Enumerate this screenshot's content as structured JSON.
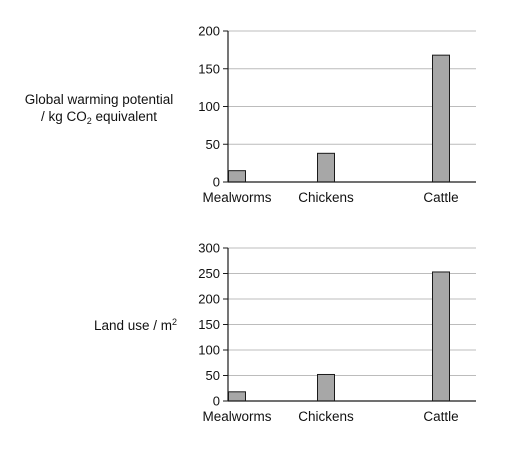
{
  "colors": {
    "bar_fill": "#a7a7a7",
    "bar_stroke": "#1a1a1a",
    "grid": "#bcbcbc",
    "axis": "#1a1a1a"
  },
  "chart_data": [
    {
      "type": "bar",
      "categories": [
        "Mealworms",
        "Chickens",
        "Cattle"
      ],
      "values": [
        15,
        38,
        168
      ],
      "ylabel": {
        "line1": "Global warming potential",
        "line2_prefix": "/ kg CO",
        "line2_sub": "2",
        "line2_suffix": " equivalent"
      },
      "ylim": [
        0,
        200
      ],
      "yticks": [
        0,
        50,
        100,
        150,
        200
      ],
      "grid": true,
      "legend": "none"
    },
    {
      "type": "bar",
      "categories": [
        "Mealworms",
        "Chickens",
        "Cattle"
      ],
      "values": [
        18,
        52,
        253
      ],
      "ylabel": {
        "line1_prefix": "Land use / m",
        "line1_sup": "2"
      },
      "ylim": [
        0,
        300
      ],
      "yticks": [
        0,
        50,
        100,
        150,
        200,
        250,
        300
      ],
      "grid": true,
      "legend": "none"
    }
  ]
}
